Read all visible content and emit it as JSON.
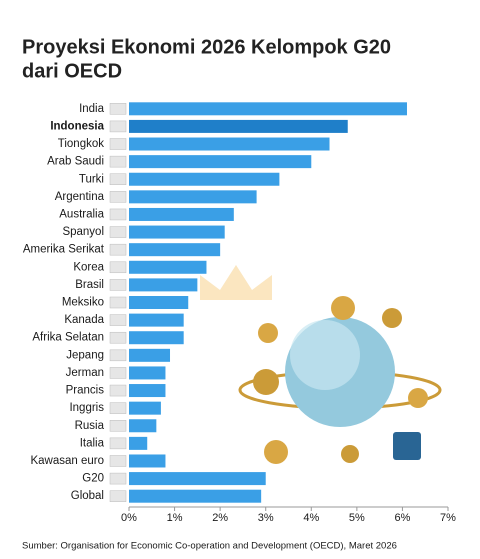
{
  "chart_data": {
    "type": "bar",
    "orientation": "horizontal",
    "title": "Proyeksi Ekonomi 2026 Kelompok G20",
    "subtitle": "dari OECD",
    "categories": [
      "India",
      "Indonesia",
      "Tiongkok",
      "Arab Saudi",
      "Turki",
      "Argentina",
      "Australia",
      "Spanyol",
      "Amerika Serikat",
      "Korea",
      "Brasil",
      "Meksiko",
      "Kanada",
      "Afrika Selatan",
      "Jepang",
      "Jerman",
      "Prancis",
      "Inggris",
      "Rusia",
      "Italia",
      "Kawasan euro",
      "G20",
      "Global"
    ],
    "values": [
      6.1,
      4.8,
      4.4,
      4.0,
      3.3,
      2.8,
      2.3,
      2.1,
      2.0,
      1.7,
      1.5,
      1.3,
      1.2,
      1.2,
      0.9,
      0.8,
      0.8,
      0.7,
      0.6,
      0.4,
      0.8,
      3.0,
      2.9
    ],
    "color": "#3a9fe6",
    "colors": [
      "#3a9fe6",
      "#1f7fc9",
      "#3a9fe6",
      "#3a9fe6",
      "#3a9fe6",
      "#3a9fe6",
      "#3a9fe6",
      "#3a9fe6",
      "#3a9fe6",
      "#3a9fe6",
      "#3a9fe6",
      "#3a9fe6",
      "#3a9fe6",
      "#3a9fe6",
      "#3a9fe6",
      "#3a9fe6",
      "#3a9fe6",
      "#3a9fe6",
      "#3a9fe6",
      "#3a9fe6",
      "#3a9fe6",
      "#3a9fe6",
      "#3a9fe6"
    ],
    "xlim": [
      0,
      7
    ],
    "xticks": [
      {
        "value": 0,
        "label": "0%"
      },
      {
        "value": 1,
        "label": "1%"
      },
      {
        "value": 2,
        "label": "2%"
      },
      {
        "value": 3,
        "label": "3%"
      },
      {
        "value": 4,
        "label": "4%"
      },
      {
        "value": 5,
        "label": "5%"
      },
      {
        "value": 6,
        "label": "6%"
      },
      {
        "value": 7,
        "label": "7%"
      }
    ],
    "source": "Sumber: Organisation for Economic Co-operation and Development (OECD), Maret 2026"
  }
}
